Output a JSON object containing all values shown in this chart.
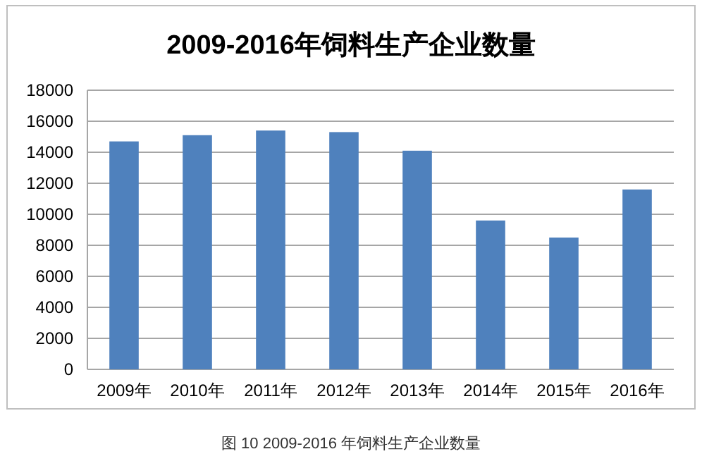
{
  "chart_data": {
    "type": "bar",
    "title": "2009-2016年饲料生产企业数量",
    "categories": [
      "2009年",
      "2010年",
      "2011年",
      "2012年",
      "2013年",
      "2014年",
      "2015年",
      "2016年"
    ],
    "values": [
      14700,
      15100,
      15400,
      15300,
      14100,
      9600,
      8500,
      11600
    ],
    "color": "#4f81bd",
    "ylim": [
      0,
      18000
    ],
    "yticks": [
      0,
      2000,
      4000,
      6000,
      8000,
      10000,
      12000,
      14000,
      16000,
      18000
    ],
    "grid": "y",
    "annotations": [
      "图 10 2009-2016 年饲料生产企业数量"
    ]
  }
}
